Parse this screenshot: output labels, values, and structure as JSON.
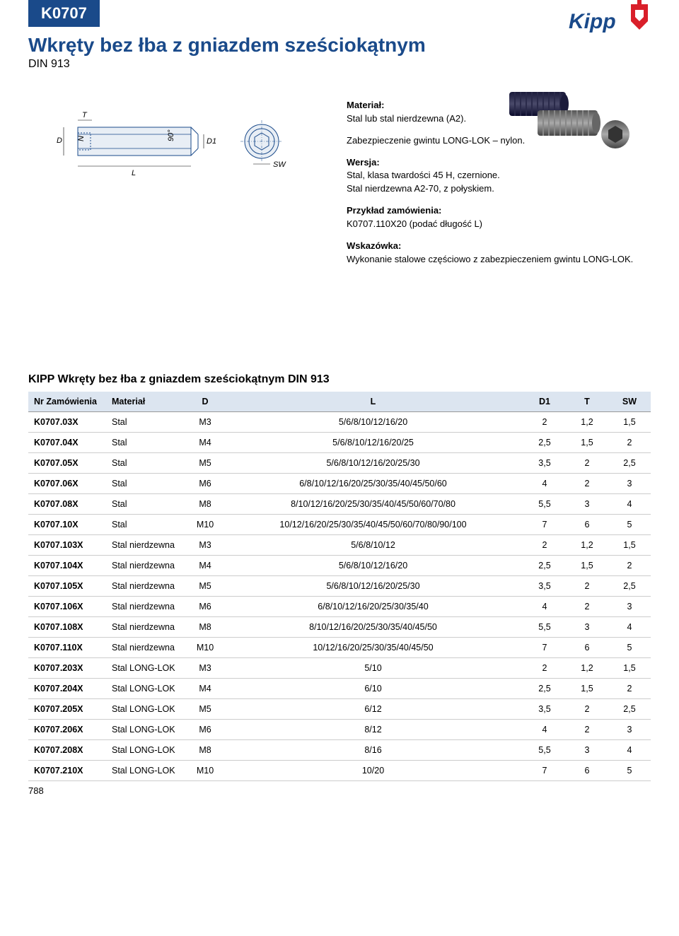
{
  "badge": "K0707",
  "title": "Wkręty bez łba z gniazdem sześciokątnym",
  "subtitle": "DIN 913",
  "logo_text": "Kipp",
  "product_image_alt": "set screws photo",
  "drawing_labels": {
    "T": "T",
    "D": "D",
    "N": "N",
    "angle": "90°",
    "L": "L",
    "D1": "D1",
    "SW": "SW"
  },
  "specs": {
    "material_label": "Materiał:",
    "material_text": "Stal lub stal nierdzewna (A2).",
    "lock_text": "Zabezpieczenie gwintu LONG-LOK – nylon.",
    "version_label": "Wersja:",
    "version_text1": "Stal, klasa twardości 45 H, czernione.",
    "version_text2": "Stal nierdzewna A2-70, z połyskiem.",
    "order_label": "Przykład zamówienia:",
    "order_text": "K0707.110X20 (podać długość L)",
    "hint_label": "Wskazówka:",
    "hint_text": "Wykonanie stalowe częściowo z zabezpieczeniem gwintu LONG-LOK."
  },
  "table_title": "KIPP Wkręty bez łba z gniazdem sześciokątnym DIN 913",
  "columns": [
    "Nr Zamówienia",
    "Materiał",
    "D",
    "L",
    "D1",
    "T",
    "SW"
  ],
  "rows": [
    [
      "K0707.03X",
      "Stal",
      "M3",
      "5/6/8/10/12/16/20",
      "2",
      "1,2",
      "1,5"
    ],
    [
      "K0707.04X",
      "Stal",
      "M4",
      "5/6/8/10/12/16/20/25",
      "2,5",
      "1,5",
      "2"
    ],
    [
      "K0707.05X",
      "Stal",
      "M5",
      "5/6/8/10/12/16/20/25/30",
      "3,5",
      "2",
      "2,5"
    ],
    [
      "K0707.06X",
      "Stal",
      "M6",
      "6/8/10/12/16/20/25/30/35/40/45/50/60",
      "4",
      "2",
      "3"
    ],
    [
      "K0707.08X",
      "Stal",
      "M8",
      "8/10/12/16/20/25/30/35/40/45/50/60/70/80",
      "5,5",
      "3",
      "4"
    ],
    [
      "K0707.10X",
      "Stal",
      "M10",
      "10/12/16/20/25/30/35/40/45/50/60/70/80/90/100",
      "7",
      "6",
      "5"
    ],
    [
      "K0707.103X",
      "Stal nierdzewna",
      "M3",
      "5/6/8/10/12",
      "2",
      "1,2",
      "1,5"
    ],
    [
      "K0707.104X",
      "Stal nierdzewna",
      "M4",
      "5/6/8/10/12/16/20",
      "2,5",
      "1,5",
      "2"
    ],
    [
      "K0707.105X",
      "Stal nierdzewna",
      "M5",
      "5/6/8/10/12/16/20/25/30",
      "3,5",
      "2",
      "2,5"
    ],
    [
      "K0707.106X",
      "Stal nierdzewna",
      "M6",
      "6/8/10/12/16/20/25/30/35/40",
      "4",
      "2",
      "3"
    ],
    [
      "K0707.108X",
      "Stal nierdzewna",
      "M8",
      "8/10/12/16/20/25/30/35/40/45/50",
      "5,5",
      "3",
      "4"
    ],
    [
      "K0707.110X",
      "Stal nierdzewna",
      "M10",
      "10/12/16/20/25/30/35/40/45/50",
      "7",
      "6",
      "5"
    ],
    [
      "K0707.203X",
      "Stal LONG-LOK",
      "M3",
      "5/10",
      "2",
      "1,2",
      "1,5"
    ],
    [
      "K0707.204X",
      "Stal LONG-LOK",
      "M4",
      "6/10",
      "2,5",
      "1,5",
      "2"
    ],
    [
      "K0707.205X",
      "Stal LONG-LOK",
      "M5",
      "6/12",
      "3,5",
      "2",
      "2,5"
    ],
    [
      "K0707.206X",
      "Stal LONG-LOK",
      "M6",
      "8/12",
      "4",
      "2",
      "3"
    ],
    [
      "K0707.208X",
      "Stal LONG-LOK",
      "M8",
      "8/16",
      "5,5",
      "3",
      "4"
    ],
    [
      "K0707.210X",
      "Stal LONG-LOK",
      "M10",
      "10/20",
      "7",
      "6",
      "5"
    ]
  ],
  "page_number": "788",
  "colors": {
    "brand_blue": "#1a4a8a",
    "header_bg": "#dce5f0",
    "row_border": "#cccccc",
    "logo_red": "#d91f2a"
  }
}
